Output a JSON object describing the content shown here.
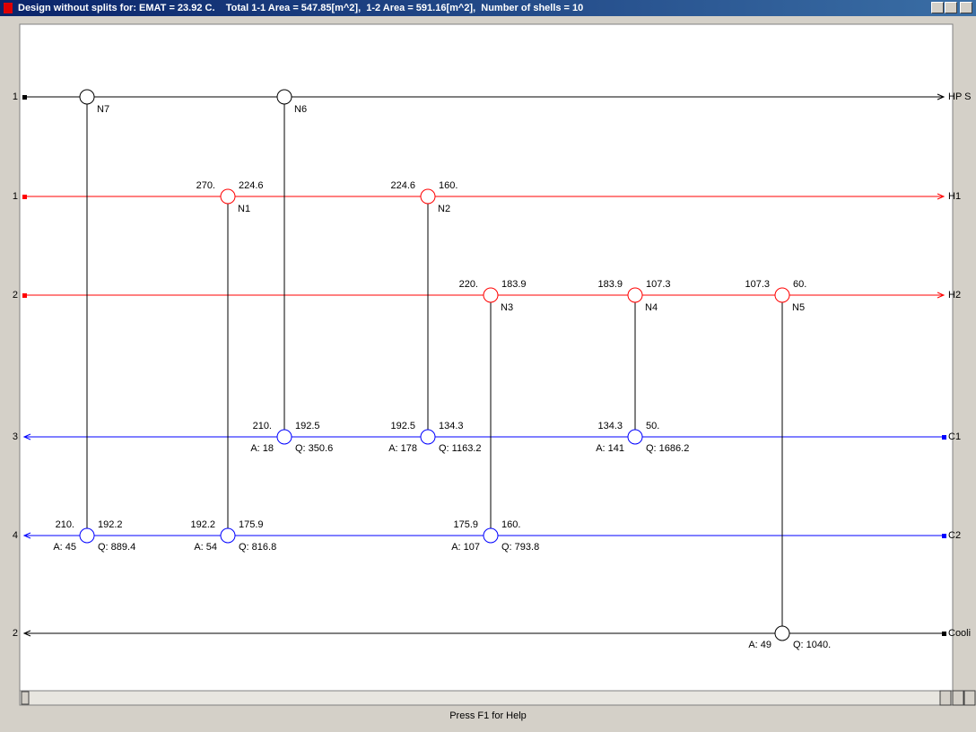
{
  "window": {
    "title": "Design without splits for: EMAT = 23.92 C.    Total 1-1 Area = 547.85[m^2],  1-2 Area = 591.16[m^2],  Number of shells = 10",
    "status": "Press F1 for Help"
  },
  "streams": [
    {
      "number": "1",
      "name": "HP S",
      "color": "#000000"
    },
    {
      "number": "1",
      "name": "H1",
      "color": "#ff0000"
    },
    {
      "number": "2",
      "name": "H2",
      "color": "#ff0000"
    },
    {
      "number": "3",
      "name": "C1",
      "color": "#0000ff"
    },
    {
      "number": "4",
      "name": "C2",
      "color": "#0000ff"
    },
    {
      "number": "2",
      "name": "Cooli",
      "color": "#000000"
    }
  ],
  "matches": [
    {
      "label": "N7",
      "cold_left": "210.",
      "cold_right": "192.2",
      "area": "A: 45",
      "duty": "Q: 889.4"
    },
    {
      "label": "N6",
      "cold_left": "210.",
      "cold_right": "192.5",
      "area": "A: 18",
      "duty": "Q: 350.6"
    },
    {
      "label": "N1",
      "hot_left": "270.",
      "hot_right": "224.6",
      "cold_left": "192.2",
      "cold_right": "175.9",
      "area": "A: 54",
      "duty": "Q: 816.8"
    },
    {
      "label": "N2",
      "hot_left": "224.6",
      "hot_right": "160.",
      "cold_left": "192.5",
      "cold_right": "134.3",
      "area": "A: 178",
      "duty": "Q: 1163.2"
    },
    {
      "label": "N3",
      "hot_left": "220.",
      "hot_right": "183.9",
      "cold_left": "175.9",
      "cold_right": "160.",
      "area": "A: 107",
      "duty": "Q: 793.8"
    },
    {
      "label": "N4",
      "hot_left": "183.9",
      "hot_right": "107.3",
      "cold_left": "134.3",
      "cold_right": "50.",
      "area": "A: 141",
      "duty": "Q: 1686.2"
    },
    {
      "label": "N5",
      "hot_left": "107.3",
      "hot_right": "60.",
      "area": "A: 49",
      "duty": "Q: 1040."
    }
  ]
}
